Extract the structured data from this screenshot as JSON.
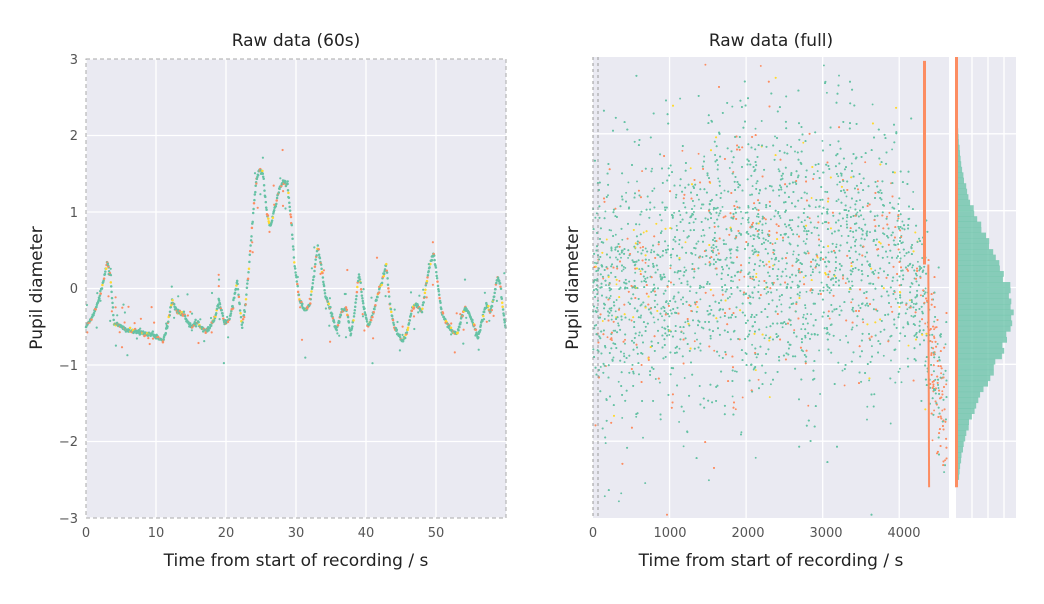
{
  "chart_data": [
    {
      "type": "scatter",
      "title": "Raw data (60s)",
      "xlabel": "Time from start of recording / s",
      "ylabel": "Pupil diameter",
      "xlim": [
        0,
        60
      ],
      "ylim": [
        -3,
        3
      ],
      "xticks": [
        "0",
        "10",
        "20",
        "30",
        "40",
        "50"
      ],
      "yticks": [
        "−3",
        "−2",
        "−1",
        "0",
        "1",
        "2",
        "3"
      ],
      "grid": true,
      "background": "#eaeaf2",
      "series_colors": {
        "primary": "#66c2a5",
        "secondary": "#fc8d62",
        "tertiary": "#ffd92f"
      },
      "trace": [
        [
          0,
          -0.5
        ],
        [
          1,
          -0.35
        ],
        [
          1.8,
          -0.15
        ],
        [
          2.5,
          0.1
        ],
        [
          3,
          0.35
        ],
        [
          3.5,
          0.15
        ],
        [
          4,
          -0.45
        ],
        [
          6,
          -0.55
        ],
        [
          8,
          -0.58
        ],
        [
          9.5,
          -0.6
        ],
        [
          10.5,
          -0.65
        ],
        [
          11,
          -0.7
        ],
        [
          11.6,
          -0.5
        ],
        [
          12.3,
          -0.15
        ],
        [
          13,
          -0.3
        ],
        [
          14,
          -0.35
        ],
        [
          15,
          -0.5
        ],
        [
          16,
          -0.45
        ],
        [
          17,
          -0.55
        ],
        [
          17.8,
          -0.5
        ],
        [
          18.5,
          -0.35
        ],
        [
          19,
          -0.15
        ],
        [
          19.8,
          -0.45
        ],
        [
          20.5,
          -0.4
        ],
        [
          21,
          -0.2
        ],
        [
          21.6,
          0.1
        ],
        [
          22.3,
          -0.5
        ],
        [
          22.8,
          -0.2
        ],
        [
          23.3,
          0.3
        ],
        [
          23.8,
          0.9
        ],
        [
          24.3,
          1.4
        ],
        [
          24.8,
          1.55
        ],
        [
          25.3,
          1.5
        ],
        [
          25.8,
          1.0
        ],
        [
          26.3,
          0.8
        ],
        [
          27,
          1.05
        ],
        [
          27.6,
          1.3
        ],
        [
          28.2,
          1.4
        ],
        [
          28.8,
          1.35
        ],
        [
          29.3,
          0.9
        ],
        [
          29.8,
          0.3
        ],
        [
          30.5,
          -0.15
        ],
        [
          31.3,
          -0.3
        ],
        [
          32,
          -0.2
        ],
        [
          32.6,
          0.2
        ],
        [
          33.1,
          0.55
        ],
        [
          33.6,
          0.3
        ],
        [
          34.2,
          -0.1
        ],
        [
          35,
          -0.3
        ],
        [
          35.8,
          -0.55
        ],
        [
          36.5,
          -0.3
        ],
        [
          37.2,
          -0.25
        ],
        [
          37.8,
          -0.6
        ],
        [
          38.4,
          -0.3
        ],
        [
          39,
          0.2
        ],
        [
          39.6,
          -0.2
        ],
        [
          40.3,
          -0.5
        ],
        [
          41,
          -0.35
        ],
        [
          41.6,
          -0.1
        ],
        [
          42.3,
          0.1
        ],
        [
          42.9,
          0.3
        ],
        [
          43.4,
          -0.2
        ],
        [
          44,
          -0.5
        ],
        [
          44.6,
          -0.6
        ],
        [
          45.2,
          -0.7
        ],
        [
          45.8,
          -0.6
        ],
        [
          46.5,
          -0.3
        ],
        [
          47.2,
          -0.2
        ],
        [
          48,
          -0.3
        ],
        [
          48.5,
          0.0
        ],
        [
          49.1,
          0.3
        ],
        [
          49.7,
          0.45
        ],
        [
          50.2,
          0.1
        ],
        [
          50.8,
          -0.3
        ],
        [
          51.5,
          -0.45
        ],
        [
          52.3,
          -0.55
        ],
        [
          53,
          -0.6
        ],
        [
          53.6,
          -0.4
        ],
        [
          54.2,
          -0.25
        ],
        [
          54.8,
          -0.35
        ],
        [
          55.5,
          -0.5
        ],
        [
          56,
          -0.65
        ],
        [
          56.6,
          -0.4
        ],
        [
          57.2,
          -0.2
        ],
        [
          57.8,
          -0.3
        ],
        [
          58.3,
          -0.1
        ],
        [
          58.8,
          0.15
        ],
        [
          59.2,
          0.05
        ],
        [
          59.6,
          -0.3
        ],
        [
          60,
          -0.55
        ]
      ]
    },
    {
      "type": "scatter",
      "title": "Raw data (full)",
      "xlabel": "Time from start of recording / s",
      "ylabel": "Pupil diameter",
      "xlim": [
        0,
        4650
      ],
      "ylim": [
        -3,
        3
      ],
      "xticks": [
        "0",
        "1000",
        "2000",
        "3000",
        "4000"
      ],
      "grid": true,
      "background": "#eaeaf2",
      "marker_window_s": 60,
      "series_colors": {
        "primary": "#66c2a5",
        "secondary": "#fc8d62",
        "tertiary": "#ffd92f"
      },
      "envelope": [
        [
          0,
          -1.2,
          1.2
        ],
        [
          300,
          -1.8,
          1.6
        ],
        [
          600,
          -1.5,
          1.5
        ],
        [
          900,
          -1.4,
          1.6
        ],
        [
          1200,
          -1.5,
          1.7
        ],
        [
          1500,
          -1.3,
          2.0
        ],
        [
          1800,
          -1.4,
          2.0
        ],
        [
          2100,
          -1.3,
          2.1
        ],
        [
          2400,
          -1.1,
          2.1
        ],
        [
          2700,
          -1.3,
          2.0
        ],
        [
          3000,
          -1.2,
          2.0
        ],
        [
          3300,
          -1.0,
          2.1
        ],
        [
          3600,
          -1.1,
          1.8
        ],
        [
          3900,
          -1.2,
          2.0
        ],
        [
          4150,
          -1.0,
          1.0
        ],
        [
          4300,
          -1.1,
          0.8
        ],
        [
          4500,
          -2.2,
          -0.2
        ],
        [
          4600,
          -2.6,
          -0.5
        ]
      ],
      "histogram": {
        "orientation": "horizontal",
        "bins_y": [
          -2.5,
          2.5
        ],
        "mean": -0.3,
        "sd": 0.85
      }
    }
  ]
}
